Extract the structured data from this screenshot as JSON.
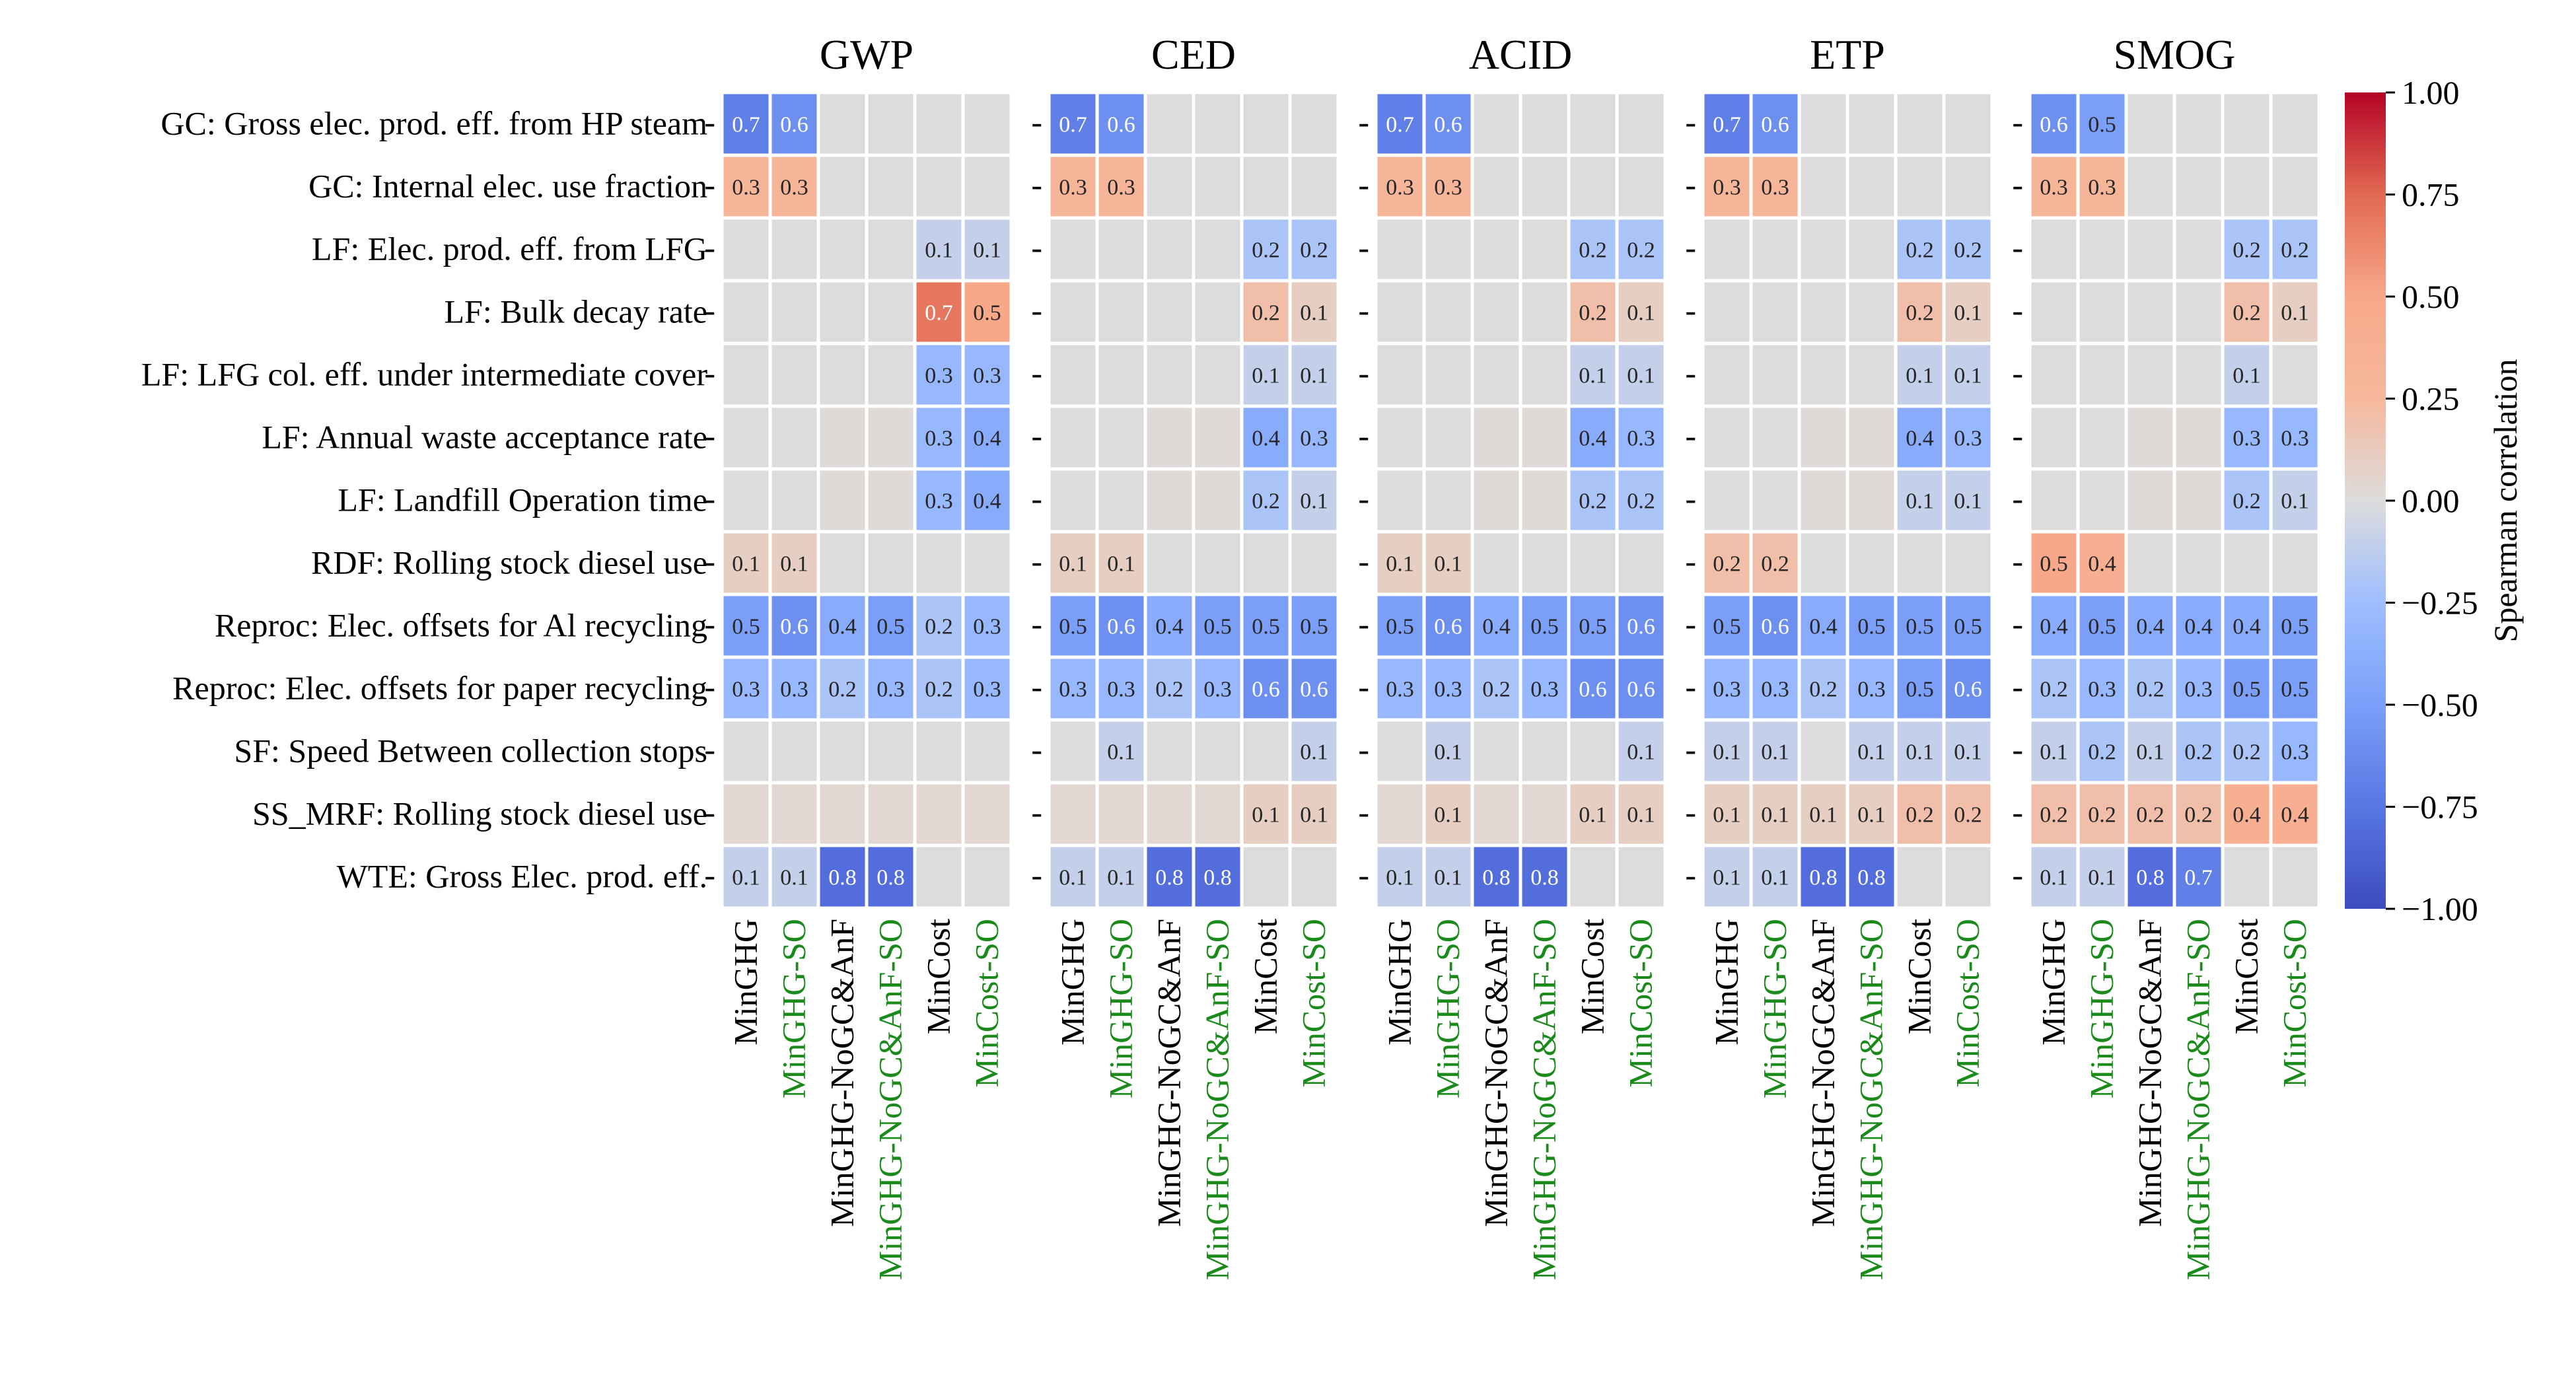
{
  "chart_data": {
    "type": "heatmap",
    "title": "",
    "panels": [
      "GWP",
      "CED",
      "ACID",
      "ETP",
      "SMOG"
    ],
    "rows": [
      "GC: Gross elec. prod. eff. from HP steam",
      "GC: Internal elec. use fraction",
      "LF: Elec. prod. eff. from LFG",
      "LF: Bulk decay rate",
      "LF: LFG col. eff. under intermediate cover",
      "LF: Annual waste acceptance rate",
      "LF: Landfill Operation time",
      "RDF: Rolling stock diesel use",
      "Reproc: Elec. offsets for Al recycling",
      "Reproc: Elec. offsets for paper recycling",
      "SF: Speed Between collection stops",
      "SS_MRF: Rolling stock diesel use",
      "WTE: Gross Elec. prod. eff."
    ],
    "columns": [
      {
        "label": "MinGHG",
        "color": "#000000"
      },
      {
        "label": "MinGHG-SO",
        "color": "#1a8a1a"
      },
      {
        "label": "MinGHG-NoGC&AnF",
        "color": "#000000"
      },
      {
        "label": "MinGHG-NoGC&AnF-SO",
        "color": "#1a8a1a"
      },
      {
        "label": "MinCost",
        "color": "#000000"
      },
      {
        "label": "MinCost-SO",
        "color": "#1a8a1a"
      }
    ],
    "values": [
      [
        [
          -0.7,
          -0.6,
          0,
          0,
          0,
          0
        ],
        [
          0.3,
          0.3,
          0,
          0,
          0,
          0
        ],
        [
          0,
          0,
          0,
          0,
          -0.1,
          -0.1
        ],
        [
          0,
          0,
          0,
          0,
          0.7,
          0.5
        ],
        [
          0,
          0,
          0,
          0,
          -0.3,
          -0.3
        ],
        [
          0,
          0,
          0.02,
          0.02,
          -0.3,
          -0.4
        ],
        [
          0,
          0,
          0.02,
          0.02,
          -0.3,
          -0.4
        ],
        [
          0.1,
          0.1,
          0,
          0,
          0,
          0
        ],
        [
          -0.5,
          -0.6,
          -0.4,
          -0.5,
          -0.2,
          -0.3
        ],
        [
          -0.3,
          -0.3,
          -0.2,
          -0.3,
          -0.2,
          -0.3
        ],
        [
          0,
          0,
          0,
          0,
          0,
          0
        ],
        [
          0.04,
          0.04,
          0.04,
          0.04,
          0.04,
          0.04
        ],
        [
          -0.1,
          -0.1,
          -0.8,
          -0.8,
          0,
          0
        ]
      ],
      [
        [
          -0.7,
          -0.6,
          0,
          0,
          0,
          0
        ],
        [
          0.3,
          0.3,
          0,
          0,
          0,
          0
        ],
        [
          0,
          0,
          0,
          0,
          -0.2,
          -0.2
        ],
        [
          0,
          0,
          0,
          0,
          0.2,
          0.1
        ],
        [
          0,
          0,
          0,
          0,
          -0.1,
          -0.1
        ],
        [
          0,
          0,
          0.02,
          0.02,
          -0.4,
          -0.3
        ],
        [
          0,
          0,
          0.02,
          0.02,
          -0.2,
          -0.1
        ],
        [
          0.1,
          0.1,
          0,
          0,
          0,
          0
        ],
        [
          -0.5,
          -0.6,
          -0.4,
          -0.5,
          -0.5,
          -0.5
        ],
        [
          -0.3,
          -0.3,
          -0.2,
          -0.3,
          -0.6,
          -0.6
        ],
        [
          0,
          -0.1,
          0,
          0,
          0,
          -0.1
        ],
        [
          0.04,
          0.04,
          0.04,
          0.04,
          0.1,
          0.1
        ],
        [
          -0.1,
          -0.1,
          -0.8,
          -0.8,
          0,
          0
        ]
      ],
      [
        [
          -0.7,
          -0.6,
          0,
          0,
          0,
          0
        ],
        [
          0.3,
          0.3,
          0,
          0,
          0,
          0
        ],
        [
          0,
          0,
          0,
          0,
          -0.2,
          -0.2
        ],
        [
          0,
          0,
          0,
          0,
          0.2,
          0.1
        ],
        [
          0,
          0,
          0,
          0,
          -0.1,
          -0.1
        ],
        [
          0,
          0,
          0.02,
          0.02,
          -0.4,
          -0.3
        ],
        [
          0,
          0,
          0.02,
          0.02,
          -0.2,
          -0.2
        ],
        [
          0.1,
          0.1,
          0,
          0,
          0,
          0
        ],
        [
          -0.5,
          -0.6,
          -0.4,
          -0.5,
          -0.5,
          -0.6
        ],
        [
          -0.3,
          -0.3,
          -0.2,
          -0.3,
          -0.6,
          -0.6
        ],
        [
          0,
          -0.1,
          0,
          0,
          0,
          -0.1
        ],
        [
          0.04,
          0.1,
          0.04,
          0.04,
          0.1,
          0.1
        ],
        [
          -0.1,
          -0.1,
          -0.8,
          -0.8,
          0,
          0
        ]
      ],
      [
        [
          -0.7,
          -0.6,
          0,
          0,
          0,
          0
        ],
        [
          0.3,
          0.3,
          0,
          0,
          0,
          0
        ],
        [
          0,
          0,
          0,
          0,
          -0.2,
          -0.2
        ],
        [
          0,
          0,
          0,
          0,
          0.2,
          0.1
        ],
        [
          0,
          0,
          0,
          0,
          -0.1,
          -0.1
        ],
        [
          0,
          0,
          0.02,
          0.02,
          -0.4,
          -0.3
        ],
        [
          0,
          0,
          0.02,
          0.02,
          -0.1,
          -0.1
        ],
        [
          0.2,
          0.2,
          0,
          0,
          0,
          0
        ],
        [
          -0.5,
          -0.6,
          -0.4,
          -0.5,
          -0.5,
          -0.5
        ],
        [
          -0.3,
          -0.3,
          -0.2,
          -0.3,
          -0.5,
          -0.6
        ],
        [
          -0.1,
          -0.1,
          0,
          -0.1,
          -0.1,
          -0.1
        ],
        [
          0.1,
          0.1,
          0.1,
          0.1,
          0.2,
          0.2
        ],
        [
          -0.1,
          -0.1,
          -0.8,
          -0.8,
          0,
          0
        ]
      ],
      [
        [
          -0.6,
          -0.5,
          0,
          0,
          0,
          0
        ],
        [
          0.3,
          0.3,
          0,
          0,
          0,
          0
        ],
        [
          0,
          0,
          0,
          0,
          -0.2,
          -0.2
        ],
        [
          0,
          0,
          0,
          0,
          0.2,
          0.1
        ],
        [
          0,
          0,
          0,
          0,
          -0.1,
          0
        ],
        [
          0,
          0,
          0.02,
          0.02,
          -0.3,
          -0.3
        ],
        [
          0,
          0,
          0.02,
          0.02,
          -0.2,
          -0.1
        ],
        [
          0.5,
          0.4,
          0,
          0,
          0,
          0
        ],
        [
          -0.4,
          -0.5,
          -0.4,
          -0.4,
          -0.4,
          -0.5
        ],
        [
          -0.2,
          -0.3,
          -0.2,
          -0.3,
          -0.5,
          -0.5
        ],
        [
          -0.1,
          -0.2,
          -0.1,
          -0.2,
          -0.2,
          -0.3
        ],
        [
          0.2,
          0.2,
          0.2,
          0.2,
          0.4,
          0.4
        ],
        [
          -0.1,
          -0.1,
          -0.8,
          -0.7,
          0,
          0
        ]
      ]
    ],
    "cell_labels": [
      [
        [
          "0.7",
          "0.6",
          "",
          "",
          "",
          ""
        ],
        [
          "0.3",
          "0.3",
          "",
          "",
          "",
          ""
        ],
        [
          "",
          "",
          "",
          "",
          "0.1",
          "0.1"
        ],
        [
          "",
          "",
          "",
          "",
          "0.7",
          "0.5"
        ],
        [
          "",
          "",
          "",
          "",
          "0.3",
          "0.3"
        ],
        [
          "",
          "",
          "",
          "",
          "0.3",
          "0.4"
        ],
        [
          "",
          "",
          "",
          "",
          "0.3",
          "0.4"
        ],
        [
          "0.1",
          "0.1",
          "",
          "",
          "",
          ""
        ],
        [
          "0.5",
          "0.6",
          "0.4",
          "0.5",
          "0.2",
          "0.3"
        ],
        [
          "0.3",
          "0.3",
          "0.2",
          "0.3",
          "0.2",
          "0.3"
        ],
        [
          "",
          "",
          "",
          "",
          "",
          ""
        ],
        [
          "",
          "",
          "",
          "",
          "",
          ""
        ],
        [
          "0.1",
          "0.1",
          "0.8",
          "0.8",
          "",
          ""
        ]
      ],
      [
        [
          "0.7",
          "0.6",
          "",
          "",
          "",
          ""
        ],
        [
          "0.3",
          "0.3",
          "",
          "",
          "",
          ""
        ],
        [
          "",
          "",
          "",
          "",
          "0.2",
          "0.2"
        ],
        [
          "",
          "",
          "",
          "",
          "0.2",
          "0.1"
        ],
        [
          "",
          "",
          "",
          "",
          "0.1",
          "0.1"
        ],
        [
          "",
          "",
          "",
          "",
          "0.4",
          "0.3"
        ],
        [
          "",
          "",
          "",
          "",
          "0.2",
          "0.1"
        ],
        [
          "0.1",
          "0.1",
          "",
          "",
          "",
          ""
        ],
        [
          "0.5",
          "0.6",
          "0.4",
          "0.5",
          "0.5",
          "0.5"
        ],
        [
          "0.3",
          "0.3",
          "0.2",
          "0.3",
          "0.6",
          "0.6"
        ],
        [
          "",
          "0.1",
          "",
          "",
          "",
          "0.1"
        ],
        [
          "",
          "",
          "",
          "",
          "0.1",
          "0.1"
        ],
        [
          "0.1",
          "0.1",
          "0.8",
          "0.8",
          "",
          ""
        ]
      ],
      [
        [
          "0.7",
          "0.6",
          "",
          "",
          "",
          ""
        ],
        [
          "0.3",
          "0.3",
          "",
          "",
          "",
          ""
        ],
        [
          "",
          "",
          "",
          "",
          "0.2",
          "0.2"
        ],
        [
          "",
          "",
          "",
          "",
          "0.2",
          "0.1"
        ],
        [
          "",
          "",
          "",
          "",
          "0.1",
          "0.1"
        ],
        [
          "",
          "",
          "",
          "",
          "0.4",
          "0.3"
        ],
        [
          "",
          "",
          "",
          "",
          "0.2",
          "0.2"
        ],
        [
          "0.1",
          "0.1",
          "",
          "",
          "",
          ""
        ],
        [
          "0.5",
          "0.6",
          "0.4",
          "0.5",
          "0.5",
          "0.6"
        ],
        [
          "0.3",
          "0.3",
          "0.2",
          "0.3",
          "0.6",
          "0.6"
        ],
        [
          "",
          "0.1",
          "",
          "",
          "",
          "0.1"
        ],
        [
          "",
          "0.1",
          "",
          "",
          "0.1",
          "0.1"
        ],
        [
          "0.1",
          "0.1",
          "0.8",
          "0.8",
          "",
          ""
        ]
      ],
      [
        [
          "0.7",
          "0.6",
          "",
          "",
          "",
          ""
        ],
        [
          "0.3",
          "0.3",
          "",
          "",
          "",
          ""
        ],
        [
          "",
          "",
          "",
          "",
          "0.2",
          "0.2"
        ],
        [
          "",
          "",
          "",
          "",
          "0.2",
          "0.1"
        ],
        [
          "",
          "",
          "",
          "",
          "0.1",
          "0.1"
        ],
        [
          "",
          "",
          "",
          "",
          "0.4",
          "0.3"
        ],
        [
          "",
          "",
          "",
          "",
          "0.1",
          "0.1"
        ],
        [
          "0.2",
          "0.2",
          "",
          "",
          "",
          ""
        ],
        [
          "0.5",
          "0.6",
          "0.4",
          "0.5",
          "0.5",
          "0.5"
        ],
        [
          "0.3",
          "0.3",
          "0.2",
          "0.3",
          "0.5",
          "0.6"
        ],
        [
          "0.1",
          "0.1",
          "",
          "0.1",
          "0.1",
          "0.1"
        ],
        [
          "0.1",
          "0.1",
          "0.1",
          "0.1",
          "0.2",
          "0.2"
        ],
        [
          "0.1",
          "0.1",
          "0.8",
          "0.8",
          "",
          ""
        ]
      ],
      [
        [
          "0.6",
          "0.5",
          "",
          "",
          "",
          ""
        ],
        [
          "0.3",
          "0.3",
          "",
          "",
          "",
          ""
        ],
        [
          "",
          "",
          "",
          "",
          "0.2",
          "0.2"
        ],
        [
          "",
          "",
          "",
          "",
          "0.2",
          "0.1"
        ],
        [
          "",
          "",
          "",
          "",
          "0.1",
          ""
        ],
        [
          "",
          "",
          "",
          "",
          "0.3",
          "0.3"
        ],
        [
          "",
          "",
          "",
          "",
          "0.2",
          "0.1"
        ],
        [
          "0.5",
          "0.4",
          "",
          "",
          "",
          ""
        ],
        [
          "0.4",
          "0.5",
          "0.4",
          "0.4",
          "0.4",
          "0.5"
        ],
        [
          "0.2",
          "0.3",
          "0.2",
          "0.3",
          "0.5",
          "0.5"
        ],
        [
          "0.1",
          "0.2",
          "0.1",
          "0.2",
          "0.2",
          "0.3"
        ],
        [
          "0.2",
          "0.2",
          "0.2",
          "0.2",
          "0.4",
          "0.4"
        ],
        [
          "0.1",
          "0.1",
          "0.8",
          "0.7",
          "",
          ""
        ]
      ]
    ],
    "colorbar": {
      "label": "Spearman correlation",
      "min": -1.0,
      "max": 1.0,
      "ticks": [
        "1.00",
        "0.75",
        "0.50",
        "0.25",
        "0.00",
        "−0.25",
        "−0.50",
        "−0.75",
        "−1.00"
      ],
      "tick_values": [
        1.0,
        0.75,
        0.5,
        0.25,
        0.0,
        -0.25,
        -0.5,
        -0.75,
        -1.0
      ],
      "colormap": "coolwarm"
    },
    "y_tick_mark": "-"
  }
}
